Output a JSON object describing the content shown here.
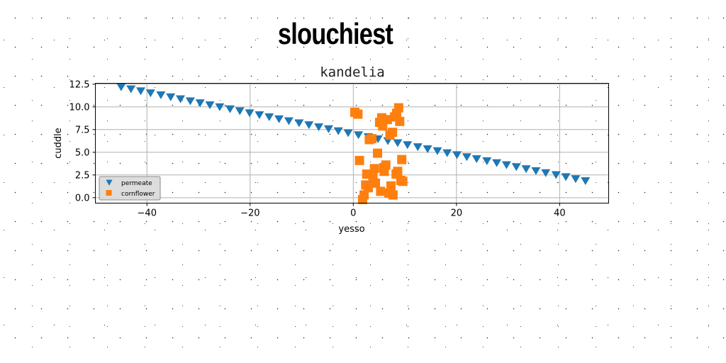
{
  "chart_data": {
    "type": "scatter",
    "title": "slouchiest",
    "subtitle": "kandelia",
    "xlabel": "yesso",
    "ylabel": "cuddle",
    "xlim": [
      -50,
      49.5
    ],
    "ylim": [
      -0.6,
      12.6
    ],
    "xticks": [
      -40,
      -20,
      0,
      20,
      40
    ],
    "xtick_labels": [
      "−40",
      "−20",
      "0",
      "20",
      "40"
    ],
    "yticks": [
      0,
      2.5,
      5,
      7.5,
      10,
      12.5
    ],
    "ytick_labels": [
      "0.0",
      "2.5",
      "5.0",
      "7.5",
      "10.0",
      "12.5"
    ],
    "grid": true,
    "legend_position": "lower-left",
    "series": [
      {
        "name": "permeate",
        "marker": "triangle-down",
        "color": "#1f77b4",
        "x": [
          -45.0,
          -43.1,
          -41.2,
          -39.3,
          -37.3,
          -35.4,
          -33.5,
          -31.6,
          -29.7,
          -27.8,
          -25.9,
          -23.9,
          -22.0,
          -20.1,
          -18.2,
          -16.3,
          -14.4,
          -12.5,
          -10.5,
          -8.6,
          -6.7,
          -4.8,
          -2.9,
          -1.0,
          1.0,
          2.9,
          4.8,
          6.7,
          8.6,
          10.5,
          12.5,
          14.4,
          16.3,
          18.2,
          20.1,
          22.0,
          23.9,
          25.9,
          27.8,
          29.7,
          31.6,
          33.5,
          35.4,
          37.3,
          39.3,
          41.2,
          43.1,
          45.0
        ],
        "y": [
          12.2,
          11.98,
          11.76,
          11.54,
          11.32,
          11.1,
          10.88,
          10.66,
          10.44,
          10.22,
          10.0,
          9.78,
          9.56,
          9.34,
          9.12,
          8.9,
          8.68,
          8.46,
          8.24,
          8.02,
          7.8,
          7.58,
          7.36,
          7.14,
          6.92,
          6.7,
          6.48,
          6.26,
          6.04,
          5.82,
          5.6,
          5.38,
          5.16,
          4.94,
          4.72,
          4.5,
          4.28,
          4.06,
          3.84,
          3.62,
          3.4,
          3.18,
          2.96,
          2.74,
          2.52,
          2.3,
          2.08,
          1.86
        ]
      },
      {
        "name": "cornflower",
        "marker": "square",
        "color": "#ff7f0e",
        "x": [
          0.3,
          0.9,
          1.2,
          2.1,
          2.6,
          3.1,
          3.6,
          4.1,
          4.7,
          5.1,
          5.5,
          5.9,
          6.3,
          6.6,
          7.1,
          7.6,
          8.0,
          8.4,
          8.8,
          9.2,
          9.6,
          1.8,
          2.9,
          4.3,
          5.3,
          6.0,
          6.9,
          7.7,
          8.3,
          9.0,
          3.8,
          5.7,
          7.3,
          8.6,
          9.4,
          2.4
        ],
        "y": [
          9.4,
          9.2,
          4.1,
          0.3,
          2.6,
          6.4,
          6.5,
          3.2,
          4.9,
          8.3,
          8.8,
          3.3,
          3.6,
          8.6,
          6.9,
          7.2,
          8.9,
          9.3,
          9.9,
          1.9,
          1.8,
          -0.2,
          1.1,
          1.6,
          0.7,
          2.9,
          0.5,
          0.3,
          2.6,
          8.4,
          2.2,
          7.9,
          1.3,
          2.9,
          4.2,
          1.4
        ]
      }
    ]
  }
}
